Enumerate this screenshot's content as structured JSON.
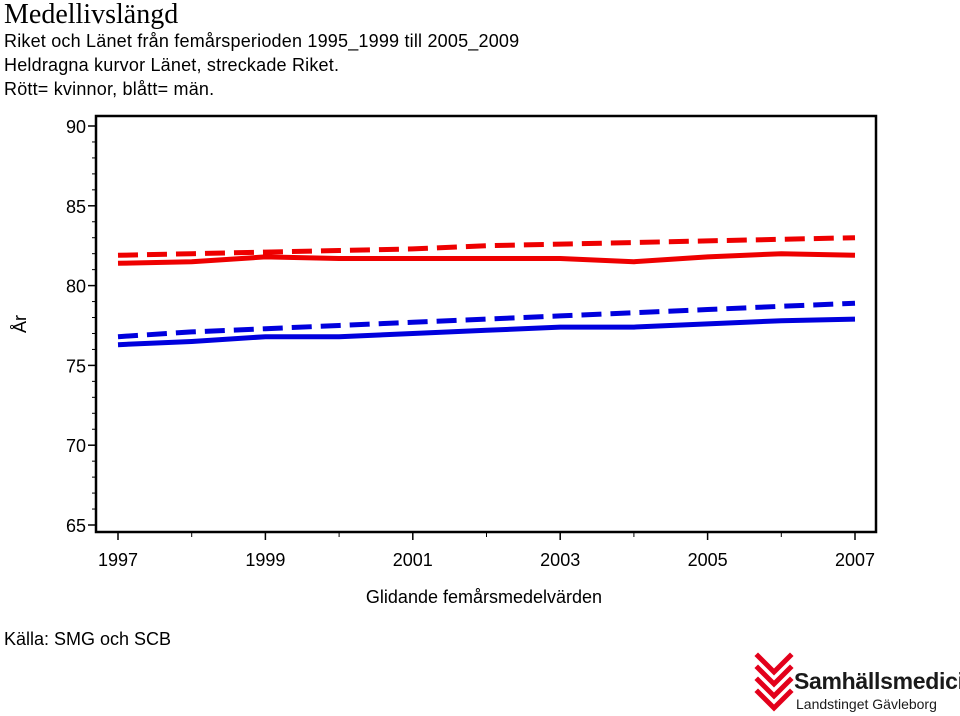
{
  "header": {
    "title": "Medellivslängd",
    "subtitle_lines": [
      "Riket och Länet från femårsperioden 1995_1999 till 2005_2009",
      "Heldragna kurvor Länet, streckade Riket.",
      "Rött= kvinnor, blått= män."
    ]
  },
  "footer": {
    "source": "Källa: SMG och SCB"
  },
  "logo": {
    "name": "Samhällsmedicin",
    "org": "Landstinget Gävleborg"
  },
  "colors": {
    "red": "#ee0000",
    "blue": "#0000dd",
    "axis": "#000000"
  },
  "chart_data": {
    "type": "line",
    "title": "Medellivslängd",
    "xlabel": "Glidande femårsmedelvärden",
    "ylabel": "År",
    "x": [
      1997,
      1998,
      1999,
      2000,
      2001,
      2002,
      2003,
      2004,
      2005,
      2006,
      2007
    ],
    "xticks": [
      "1997",
      "1999",
      "2001",
      "2003",
      "2005",
      "2007"
    ],
    "yticks": [
      "65",
      "70",
      "75",
      "80",
      "85",
      "90"
    ],
    "xlim": [
      1997,
      2007
    ],
    "ylim": [
      65,
      90
    ],
    "grid": false,
    "legend": "none",
    "series": [
      {
        "color": "#ee0000",
        "style": "solid",
        "values": [
          81.4,
          81.5,
          81.8,
          81.7,
          81.7,
          81.7,
          81.7,
          81.5,
          81.8,
          82.0,
          81.9
        ]
      },
      {
        "color": "#ee0000",
        "style": "dashed",
        "values": [
          81.9,
          82.0,
          82.1,
          82.2,
          82.3,
          82.5,
          82.6,
          82.7,
          82.8,
          82.9,
          83.0
        ]
      },
      {
        "color": "#0000dd",
        "style": "solid",
        "values": [
          76.3,
          76.5,
          76.8,
          76.8,
          77.0,
          77.2,
          77.4,
          77.4,
          77.6,
          77.8,
          77.9
        ]
      },
      {
        "color": "#0000dd",
        "style": "dashed",
        "values": [
          76.8,
          77.1,
          77.3,
          77.5,
          77.7,
          77.9,
          78.1,
          78.3,
          78.5,
          78.7,
          78.9
        ]
      }
    ]
  }
}
